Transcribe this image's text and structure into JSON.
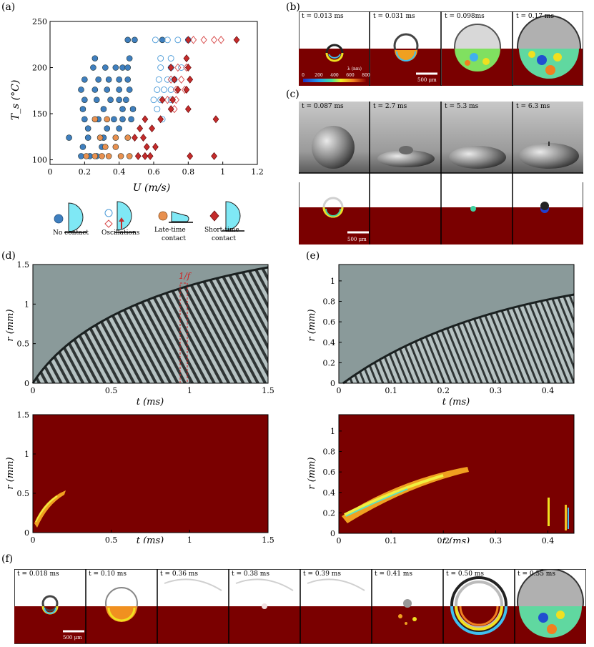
{
  "panels": {
    "a": {
      "label": "(a)",
      "chart_data": {
        "type": "scatter",
        "xlabel": "U (m/s)",
        "ylabel": "T_s (°C)",
        "xlim": [
          0,
          1.2
        ],
        "ylim": [
          95,
          250
        ],
        "xticks": [
          "0",
          "0.2",
          "0.4",
          "0.6",
          "0.8",
          "1",
          "1.2"
        ],
        "yticks": [
          "100",
          "150",
          "200",
          "250"
        ],
        "series": [
          {
            "name": "No contact",
            "marker": "filled-circle",
            "color": "#3f7fbf",
            "points": [
              [
                0.45,
                230
              ],
              [
                0.49,
                230
              ],
              [
                0.65,
                230
              ],
              [
                0.26,
                210
              ],
              [
                0.46,
                210
              ],
              [
                0.25,
                200
              ],
              [
                0.32,
                200
              ],
              [
                0.38,
                200
              ],
              [
                0.42,
                200
              ],
              [
                0.45,
                200
              ],
              [
                0.2,
                187
              ],
              [
                0.28,
                187
              ],
              [
                0.34,
                187
              ],
              [
                0.4,
                187
              ],
              [
                0.45,
                187
              ],
              [
                0.18,
                176
              ],
              [
                0.26,
                176
              ],
              [
                0.33,
                176
              ],
              [
                0.4,
                176
              ],
              [
                0.46,
                176
              ],
              [
                0.2,
                165
              ],
              [
                0.27,
                165
              ],
              [
                0.35,
                165
              ],
              [
                0.4,
                165
              ],
              [
                0.44,
                165
              ],
              [
                0.19,
                155
              ],
              [
                0.31,
                155
              ],
              [
                0.42,
                155
              ],
              [
                0.48,
                155
              ],
              [
                0.2,
                144
              ],
              [
                0.28,
                144
              ],
              [
                0.37,
                144
              ],
              [
                0.42,
                144
              ],
              [
                0.47,
                144
              ],
              [
                0.22,
                134
              ],
              [
                0.33,
                134
              ],
              [
                0.4,
                134
              ],
              [
                0.11,
                124
              ],
              [
                0.22,
                124
              ],
              [
                0.31,
                124
              ],
              [
                0.19,
                114
              ],
              [
                0.3,
                114
              ],
              [
                0.18,
                104
              ],
              [
                0.23,
                104
              ],
              [
                0.27,
                104
              ]
            ]
          },
          {
            "name": "Oscillations (circle)",
            "marker": "open-circle",
            "color": "#4a9ad8",
            "points": [
              [
                0.61,
                230
              ],
              [
                0.68,
                230
              ],
              [
                0.74,
                230
              ],
              [
                0.8,
                230
              ],
              [
                0.64,
                210
              ],
              [
                0.7,
                210
              ],
              [
                0.64,
                200
              ],
              [
                0.7,
                200
              ],
              [
                0.76,
                200
              ],
              [
                0.63,
                187
              ],
              [
                0.68,
                187
              ],
              [
                0.72,
                187
              ],
              [
                0.62,
                176
              ],
              [
                0.66,
                176
              ],
              [
                0.7,
                176
              ],
              [
                0.6,
                165
              ],
              [
                0.64,
                165
              ],
              [
                0.7,
                165
              ],
              [
                0.62,
                155
              ],
              [
                0.65,
                144
              ]
            ]
          },
          {
            "name": "Oscillations (diamond)",
            "marker": "open-diamond",
            "color": "#d64545",
            "points": [
              [
                0.83,
                230
              ],
              [
                0.89,
                230
              ],
              [
                0.95,
                230
              ],
              [
                0.99,
                230
              ],
              [
                0.74,
                200
              ],
              [
                0.79,
                200
              ],
              [
                0.7,
                187
              ],
              [
                0.76,
                187
              ],
              [
                0.73,
                176
              ],
              [
                0.78,
                176
              ],
              [
                0.68,
                165
              ],
              [
                0.73,
                165
              ],
              [
                0.72,
                155
              ]
            ]
          },
          {
            "name": "Late-time contact",
            "marker": "filled-circle",
            "color": "#e8904f",
            "points": [
              [
                0.26,
                144
              ],
              [
                0.33,
                144
              ],
              [
                0.29,
                124
              ],
              [
                0.38,
                124
              ],
              [
                0.45,
                124
              ],
              [
                0.32,
                114
              ],
              [
                0.38,
                114
              ],
              [
                0.21,
                104
              ],
              [
                0.26,
                104
              ],
              [
                0.3,
                104
              ],
              [
                0.34,
                104
              ],
              [
                0.41,
                104
              ],
              [
                0.46,
                104
              ]
            ]
          },
          {
            "name": "Short-time contact",
            "marker": "filled-diamond",
            "color": "#c42b2b",
            "points": [
              [
                1.08,
                230
              ],
              [
                0.8,
                230
              ],
              [
                0.79,
                210
              ],
              [
                0.8,
                200
              ],
              [
                0.7,
                200
              ],
              [
                0.81,
                187
              ],
              [
                0.72,
                187
              ],
              [
                0.79,
                176
              ],
              [
                0.74,
                176
              ],
              [
                0.65,
                165
              ],
              [
                0.71,
                165
              ],
              [
                0.8,
                155
              ],
              [
                0.7,
                155
              ],
              [
                0.55,
                144
              ],
              [
                0.64,
                144
              ],
              [
                0.96,
                144
              ],
              [
                0.52,
                134
              ],
              [
                0.59,
                134
              ],
              [
                0.49,
                124
              ],
              [
                0.54,
                124
              ],
              [
                0.56,
                114
              ],
              [
                0.61,
                114
              ],
              [
                0.51,
                104
              ],
              [
                0.55,
                104
              ],
              [
                0.58,
                104
              ],
              [
                0.81,
                104
              ],
              [
                0.95,
                104
              ]
            ]
          }
        ]
      },
      "legend": {
        "no_contact": "No contact",
        "oscillations": "Oscillations",
        "late_time": "Late-time contact",
        "short_time": "Short-time contact"
      }
    },
    "b": {
      "label": "(b)",
      "frames": [
        "t = 0.013 ms",
        "t = 0.031 ms",
        "t = 0.098ms",
        "t = 0.17 ms"
      ],
      "colorbar_label": "λ (nm)",
      "colorbar_ticks": [
        "0",
        "200",
        "400",
        "600",
        "800"
      ],
      "scalebar": "500 μm"
    },
    "c": {
      "label": "(c)",
      "frames": [
        "t = 0.087 ms",
        "t = 2.7 ms",
        "t = 5.3 ms",
        "t = 6.3 ms"
      ],
      "scalebar": "500 μm"
    },
    "d": {
      "label": "(d)",
      "top": {
        "xlabel": "t (ms)",
        "ylabel": "r (mm)",
        "xticks": [
          "0",
          "0.5",
          "1",
          "1.5"
        ],
        "yticks": [
          "0",
          "0.5",
          "1",
          "1.5"
        ],
        "annotation": "1/f"
      },
      "bottom": {
        "xlabel": "t (ms)",
        "ylabel": "r (mm)",
        "xticks": [
          "0",
          "0.5",
          "1",
          "1.5"
        ],
        "yticks": [
          "0",
          "0.5",
          "1",
          "1.5"
        ]
      }
    },
    "e": {
      "label": "(e)",
      "top": {
        "xlabel": "t (ms)",
        "ylabel": "r (mm)",
        "xticks": [
          "0",
          "0.1",
          "0.2",
          "0.3",
          "0.4"
        ],
        "yticks": [
          "0",
          "0.2",
          "0.4",
          "0.6",
          "0.8",
          "1"
        ]
      },
      "bottom": {
        "xlabel": "t (ms)",
        "ylabel": "r (mm)",
        "xticks": [
          "0",
          "0.1",
          "0.2",
          "0.3",
          "0.4"
        ],
        "yticks": [
          "0",
          "0.2",
          "0.4",
          "0.6",
          "0.8",
          "1"
        ]
      }
    },
    "f": {
      "label": "(f)",
      "frames": [
        "t = 0.018 ms",
        "t = 0.10 ms",
        "t = 0.36 ms",
        "t = 0.38 ms",
        "t = 0.39 ms",
        "t = 0.41 ms",
        "t = 0.50 ms",
        "t = 0.55 ms"
      ],
      "scalebar": "500 μm"
    }
  },
  "colors": {
    "dark_red": "#7a0000",
    "cyan": "#5ee0f0"
  }
}
